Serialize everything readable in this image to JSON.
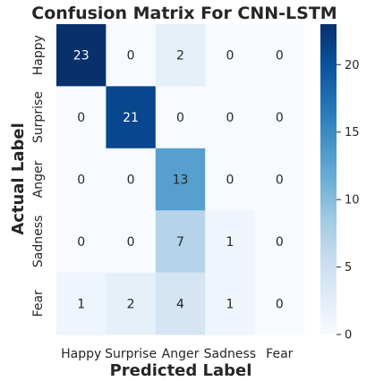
{
  "chart_data": {
    "type": "heatmap",
    "title": "Confusion Matrix For CNN-LSTM",
    "xlabel": "Predicted Label",
    "ylabel": "Actual Label",
    "x_categories": [
      "Happy",
      "Surprise",
      "Anger",
      "Sadness",
      "Fear"
    ],
    "y_categories": [
      "Happy",
      "Surprise",
      "Anger",
      "Sadness",
      "Fear"
    ],
    "values": [
      [
        23,
        0,
        2,
        0,
        0
      ],
      [
        0,
        21,
        0,
        0,
        0
      ],
      [
        0,
        0,
        13,
        0,
        0
      ],
      [
        0,
        0,
        7,
        1,
        0
      ],
      [
        1,
        2,
        4,
        1,
        0
      ]
    ],
    "colorbar": {
      "range": [
        0,
        23
      ],
      "ticks": [
        0,
        5,
        10,
        15,
        20
      ],
      "colormap": "Blues"
    }
  }
}
